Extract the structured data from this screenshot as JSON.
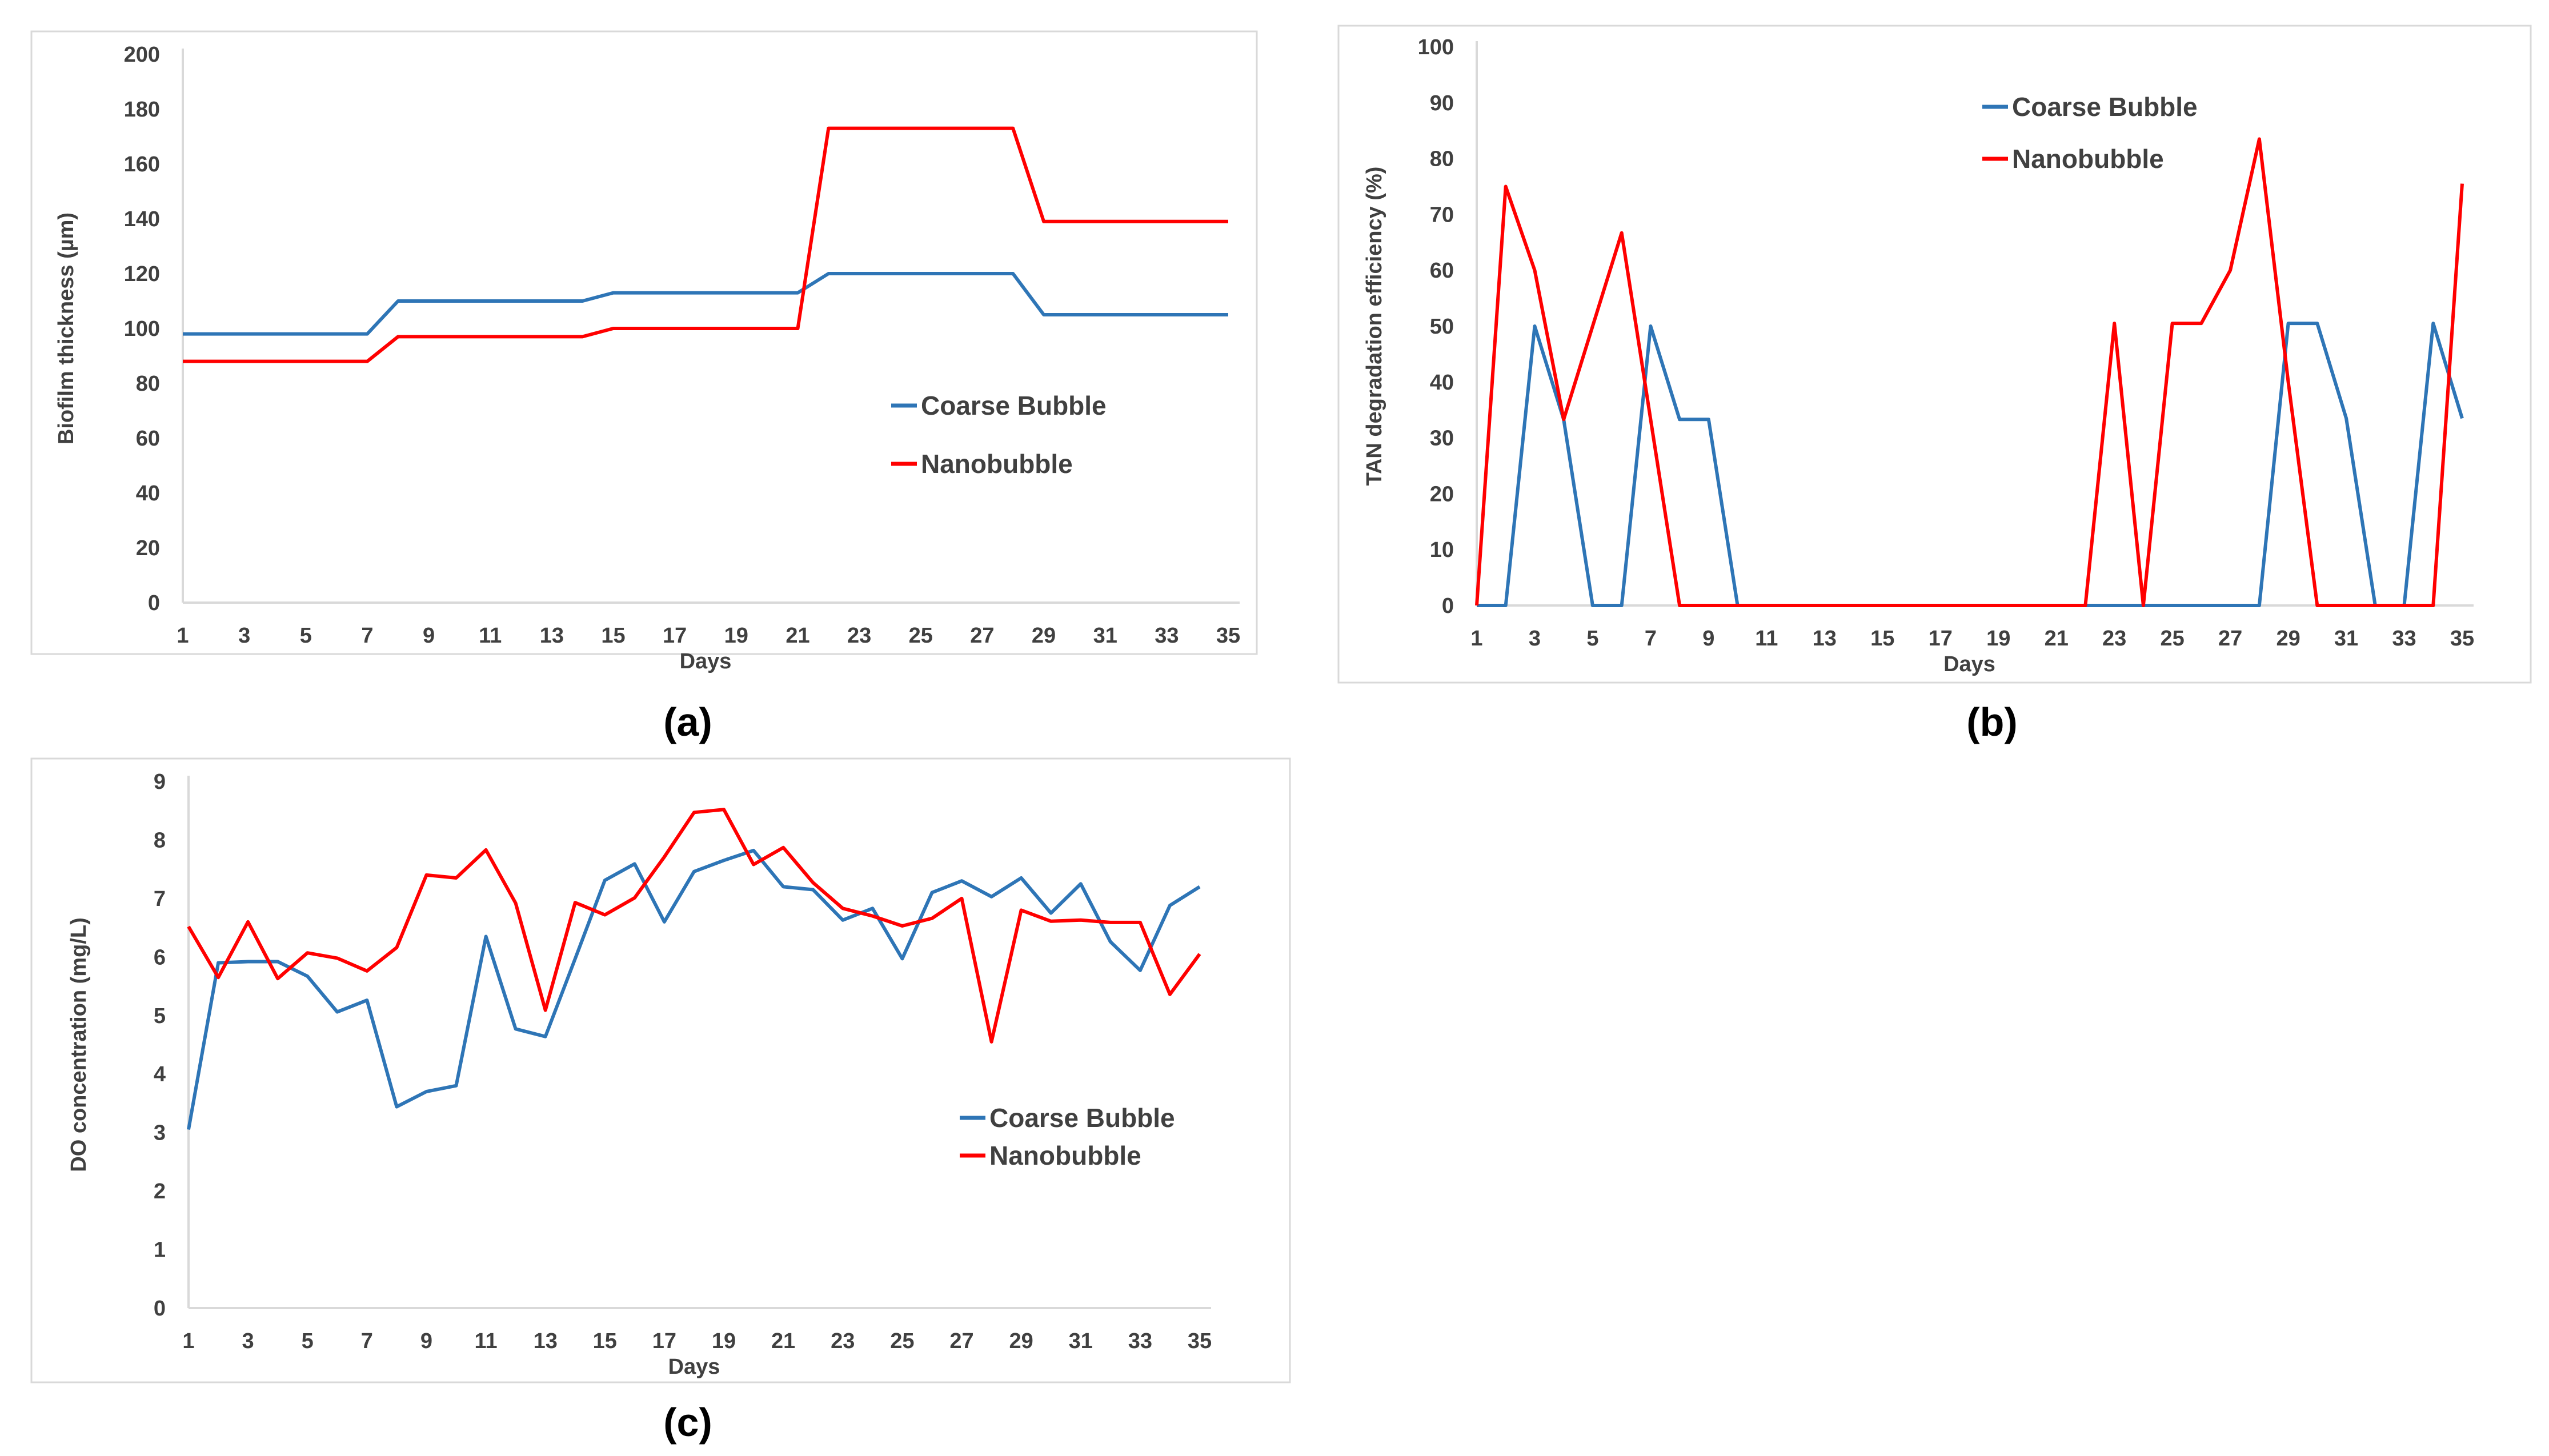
{
  "colors": {
    "coarse": "#2E75B6",
    "nano": "#FF0000"
  },
  "chart_data": [
    {
      "type": "line",
      "label": "(a)",
      "xlabel": "Days",
      "ylabel": "Biofilm thickness (µm)",
      "ylim": [
        0,
        200
      ],
      "yticks": [
        0,
        20,
        40,
        60,
        80,
        100,
        120,
        140,
        160,
        180,
        200
      ],
      "xticks": [
        1,
        3,
        5,
        7,
        9,
        11,
        13,
        15,
        17,
        19,
        21,
        23,
        25,
        27,
        29,
        31,
        33,
        35
      ],
      "x": [
        1,
        2,
        3,
        4,
        5,
        6,
        7,
        8,
        9,
        10,
        11,
        12,
        13,
        14,
        15,
        16,
        17,
        18,
        19,
        20,
        21,
        22,
        23,
        24,
        25,
        26,
        27,
        28,
        29,
        30,
        31,
        32,
        33,
        34,
        35
      ],
      "series": [
        {
          "name": "Coarse Bubble",
          "color": "coarse",
          "values": [
            98,
            98,
            98,
            98,
            98,
            98,
            98,
            110,
            110,
            110,
            110,
            110,
            110,
            110,
            113,
            113,
            113,
            113,
            113,
            113,
            113,
            120,
            120,
            120,
            120,
            120,
            120,
            120,
            105,
            105,
            105,
            105,
            105,
            105,
            105
          ]
        },
        {
          "name": "Nanobubble",
          "color": "nano",
          "values": [
            88,
            88,
            88,
            88,
            88,
            88,
            88,
            97,
            97,
            97,
            97,
            97,
            97,
            97,
            100,
            100,
            100,
            100,
            100,
            100,
            100,
            173,
            173,
            173,
            173,
            173,
            173,
            173,
            139,
            139,
            139,
            139,
            139,
            139,
            139
          ]
        }
      ]
    },
    {
      "type": "line",
      "label": "(b)",
      "xlabel": "Days",
      "ylabel": "TAN degradation efficiency (%)",
      "ylim": [
        0,
        100
      ],
      "yticks": [
        0,
        10,
        20,
        30,
        40,
        50,
        60,
        70,
        80,
        90,
        100
      ],
      "xticks": [
        1,
        3,
        5,
        7,
        9,
        11,
        13,
        15,
        17,
        19,
        21,
        23,
        25,
        27,
        29,
        31,
        33,
        35
      ],
      "x": [
        1,
        2,
        3,
        4,
        5,
        6,
        7,
        8,
        9,
        10,
        11,
        12,
        13,
        14,
        15,
        16,
        17,
        18,
        19,
        20,
        21,
        22,
        23,
        24,
        25,
        26,
        27,
        28,
        29,
        30,
        31,
        32,
        33,
        34,
        35
      ],
      "series": [
        {
          "name": "Coarse Bubble",
          "color": "coarse",
          "values": [
            0,
            0,
            50,
            33.3,
            0,
            0,
            50,
            33.3,
            33.3,
            0,
            0,
            0,
            0,
            0,
            0,
            0,
            0,
            0,
            0,
            0,
            0,
            0,
            0,
            0,
            0,
            0,
            0,
            0,
            50.5,
            50.5,
            33.5,
            0,
            0,
            50.5,
            33.5
          ]
        },
        {
          "name": "Nanobubble",
          "color": "nano",
          "values": [
            0,
            75,
            60,
            33.3,
            50,
            66.7,
            33.3,
            0,
            0,
            0,
            0,
            0,
            0,
            0,
            0,
            0,
            0,
            0,
            0,
            0,
            0,
            0,
            50.5,
            0,
            50.5,
            50.5,
            60,
            83.5,
            40,
            0,
            0,
            0,
            0,
            0,
            75.5
          ]
        }
      ]
    },
    {
      "type": "line",
      "label": "(c)",
      "xlabel": "Days",
      "ylabel": "DO concentration (mg/L)",
      "ylim": [
        0,
        9
      ],
      "yticks": [
        0,
        1,
        2,
        3,
        4,
        5,
        6,
        7,
        8,
        9
      ],
      "xticks": [
        1,
        3,
        5,
        7,
        9,
        11,
        13,
        15,
        17,
        19,
        21,
        23,
        25,
        27,
        29,
        31,
        33,
        35
      ],
      "x": [
        1,
        2,
        3,
        4,
        5,
        6,
        7,
        8,
        9,
        10,
        11,
        12,
        13,
        14,
        15,
        16,
        17,
        18,
        19,
        20,
        21,
        22,
        23,
        24,
        25,
        26,
        27,
        28,
        29,
        30,
        31,
        32,
        33,
        34,
        35
      ],
      "series": [
        {
          "name": "Coarse Bubble",
          "color": "coarse",
          "values": [
            3.05,
            5.9,
            5.92,
            5.92,
            5.67,
            5.06,
            5.26,
            3.44,
            3.7,
            3.8,
            6.35,
            4.77,
            4.64,
            5.97,
            7.31,
            7.59,
            6.6,
            7.46,
            7.65,
            7.82,
            7.2,
            7.15,
            6.63,
            6.83,
            5.97,
            7.1,
            7.3,
            7.03,
            7.35,
            6.75,
            7.25,
            6.26,
            5.77,
            6.88,
            7.2
          ]
        },
        {
          "name": "Nanobubble",
          "color": "nano",
          "values": [
            6.52,
            5.65,
            6.6,
            5.63,
            6.07,
            5.98,
            5.76,
            6.16,
            7.4,
            7.35,
            7.83,
            6.92,
            5.09,
            6.93,
            6.72,
            7.01,
            7.71,
            8.47,
            8.52,
            7.58,
            7.87,
            7.27,
            6.83,
            6.7,
            6.53,
            6.66,
            7,
            4.55,
            6.8,
            6.61,
            6.63,
            6.59,
            6.59,
            5.36,
            6.05
          ]
        }
      ]
    }
  ]
}
